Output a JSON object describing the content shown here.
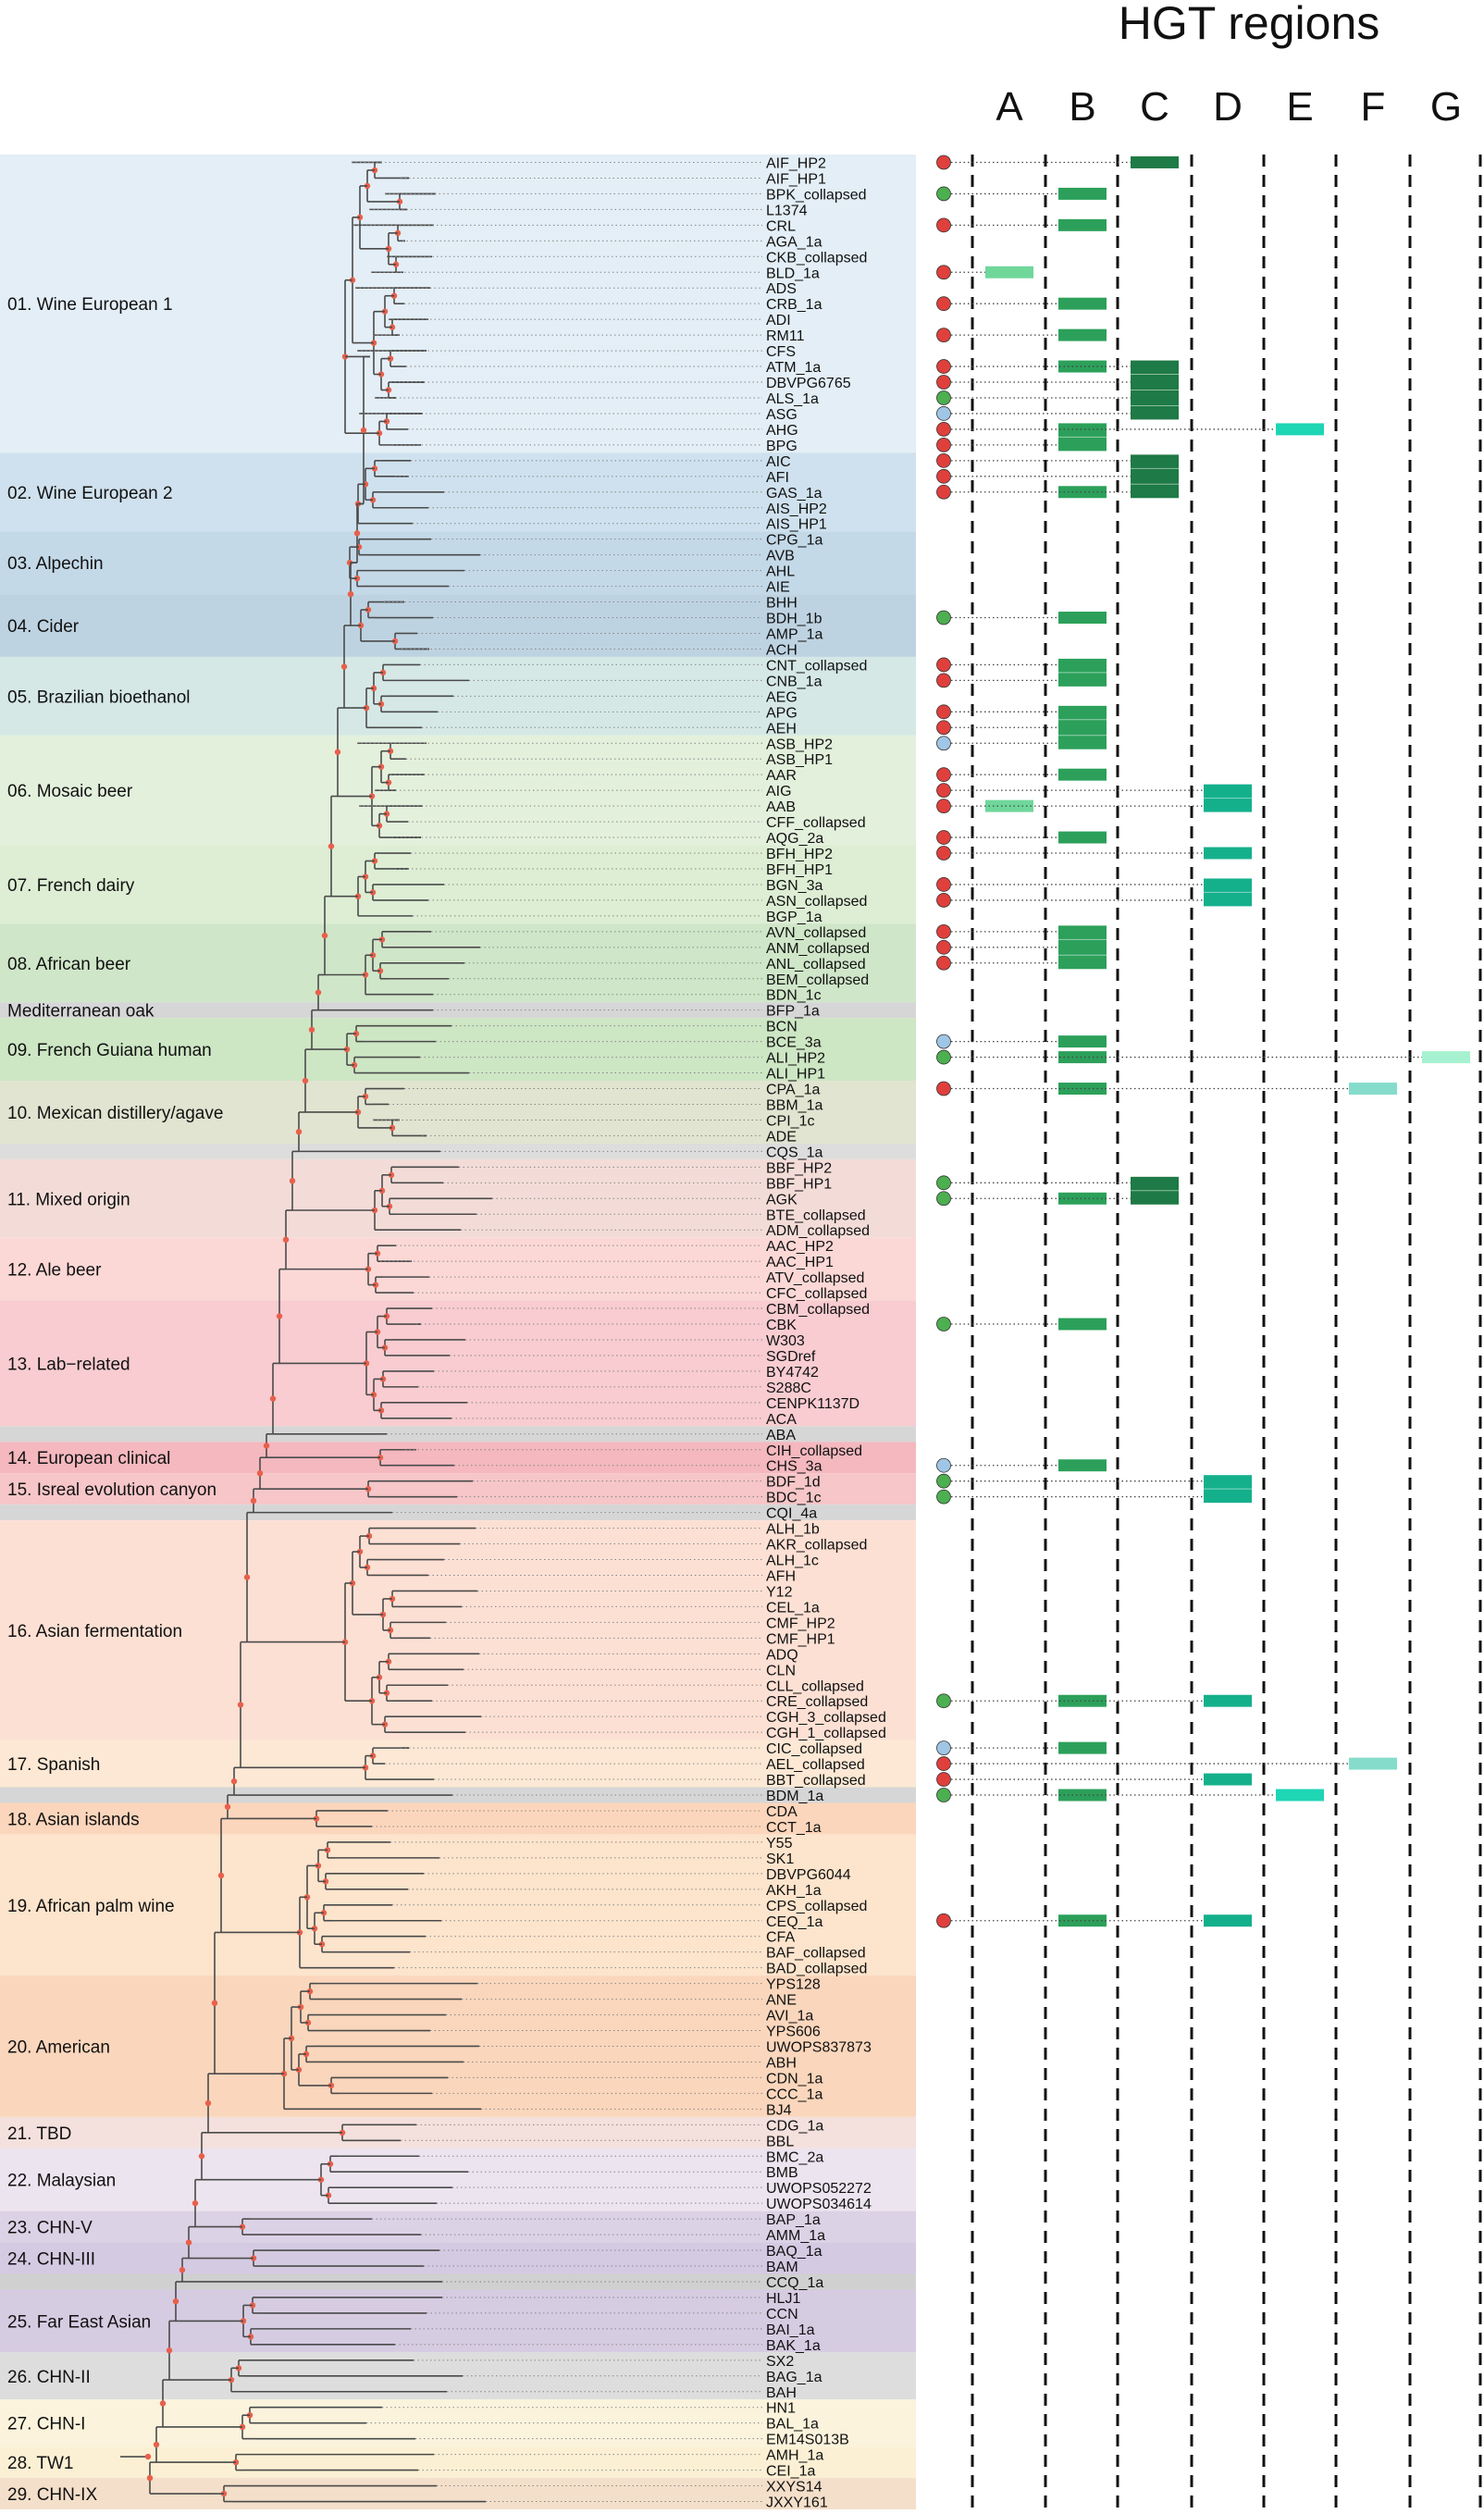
{
  "title": "HGT regions",
  "columns": [
    "A",
    "B",
    "C",
    "D",
    "E",
    "F",
    "G"
  ],
  "colors": {
    "A": "#6fd79a",
    "B": "#2ca05a",
    "C": "#1e7a46",
    "D": "#14b08c",
    "E": "#1ed6b4",
    "F": "#86dccb",
    "G": "#a6f2d0",
    "tree": "#4a4a4a",
    "node": "#e8604c",
    "dot_red": "#e0403c",
    "dot_green": "#4caf50",
    "dot_blue": "#9fc6e6"
  },
  "clades": [
    {
      "label": "01. Wine European 1",
      "start": 0,
      "end": 19,
      "color": "#e3eef6"
    },
    {
      "label": "02. Wine European 2",
      "start": 19,
      "end": 24,
      "color": "#cfe1ee"
    },
    {
      "label": "03. Alpechin",
      "start": 24,
      "end": 28,
      "color": "#c4d9e8"
    },
    {
      "label": "04. Cider",
      "start": 28,
      "end": 32,
      "color": "#bed3e2"
    },
    {
      "label": "05. Brazilian bioethanol",
      "start": 32,
      "end": 37,
      "color": "#d5e8e6"
    },
    {
      "label": "06. Mosaic beer",
      "start": 37,
      "end": 44,
      "color": "#e3f0dc"
    },
    {
      "label": "07. French dairy",
      "start": 44,
      "end": 49,
      "color": "#ddeed4"
    },
    {
      "label": "08. African beer",
      "start": 49,
      "end": 54,
      "color": "#cfe6c8"
    },
    {
      "label": "Mediterranean oak",
      "start": 54,
      "end": 55,
      "color": "#d6d6d6"
    },
    {
      "label": "09. French Guiana human",
      "start": 55,
      "end": 59,
      "color": "#cde6c4"
    },
    {
      "label": "10. Mexican distillery/agave",
      "start": 59,
      "end": 63,
      "color": "#e0e4d0"
    },
    {
      "label": "",
      "start": 63,
      "end": 64,
      "color": "#dddddd"
    },
    {
      "label": "11. Mixed origin",
      "start": 64,
      "end": 69,
      "color": "#f3dcd8"
    },
    {
      "label": "12. Ale beer",
      "start": 69,
      "end": 73,
      "color": "#fbd8d6"
    },
    {
      "label": "13. Lab−related",
      "start": 73,
      "end": 81,
      "color": "#f8ccd0"
    },
    {
      "label": "",
      "start": 81,
      "end": 82,
      "color": "#d6d6d6"
    },
    {
      "label": "14. European clinical",
      "start": 82,
      "end": 84,
      "color": "#f4b8be"
    },
    {
      "label": "15. Isreal evolution canyon",
      "start": 84,
      "end": 86,
      "color": "#f6c6c8"
    },
    {
      "label": "",
      "start": 86,
      "end": 87,
      "color": "#d6d6d6"
    },
    {
      "label": "16. Asian fermentation",
      "start": 87,
      "end": 101,
      "color": "#fde0d4"
    },
    {
      "label": "17. Spanish",
      "start": 101,
      "end": 104,
      "color": "#fce8d4"
    },
    {
      "label": "",
      "start": 104,
      "end": 105,
      "color": "#d6d6d6"
    },
    {
      "label": "18. Asian islands",
      "start": 105,
      "end": 107,
      "color": "#fcd6bc"
    },
    {
      "label": "19. African palm wine",
      "start": 107,
      "end": 116,
      "color": "#fde4cc"
    },
    {
      "label": "20. American",
      "start": 116,
      "end": 125,
      "color": "#fad6bc"
    },
    {
      "label": "21. TBD",
      "start": 125,
      "end": 127,
      "color": "#f4e0dc"
    },
    {
      "label": "22. Malaysian",
      "start": 127,
      "end": 131,
      "color": "#ece4ee"
    },
    {
      "label": "23. CHN-V",
      "start": 131,
      "end": 133,
      "color": "#dcd2e6"
    },
    {
      "label": "24. CHN-III",
      "start": 133,
      "end": 135,
      "color": "#d4cae2"
    },
    {
      "label": "",
      "start": 135,
      "end": 136,
      "color": "#d0d0d0"
    },
    {
      "label": "25. Far East Asian",
      "start": 136,
      "end": 140,
      "color": "#d6cce2"
    },
    {
      "label": "26. CHN-II",
      "start": 140,
      "end": 143,
      "color": "#dddddd"
    },
    {
      "label": "27. CHN-I",
      "start": 143,
      "end": 146,
      "color": "#fbf3dc"
    },
    {
      "label": "28. TW1",
      "start": 146,
      "end": 148,
      "color": "#fbf0d4"
    },
    {
      "label": "29. CHN-IX",
      "start": 148,
      "end": 150,
      "color": "#f4dfca"
    }
  ],
  "strains": [
    "AIF_HP2",
    "AIF_HP1",
    "BPK_collapsed",
    "L1374",
    "CRL",
    "AGA_1a",
    "CKB_collapsed",
    "BLD_1a",
    "ADS",
    "CRB_1a",
    "ADI",
    "RM11",
    "CFS",
    "ATM_1a",
    "DBVPG6765",
    "ALS_1a",
    "ASG",
    "AHG",
    "BPG",
    "AIC",
    "AFI",
    "GAS_1a",
    "AIS_HP2",
    "AIS_HP1",
    "CPG_1a",
    "AVB",
    "AHL",
    "AIE",
    "BHH",
    "BDH_1b",
    "AMP_1a",
    "ACH",
    "CNT_collapsed",
    "CNB_1a",
    "AEG",
    "APG",
    "AEH",
    "ASB_HP2",
    "ASB_HP1",
    "AAR",
    "AIG",
    "AAB",
    "CFF_collapsed",
    "AQG_2a",
    "BFH_HP2",
    "BFH_HP1",
    "BGN_3a",
    "ASN_collapsed",
    "BGP_1a",
    "AVN_collapsed",
    "ANM_collapsed",
    "ANL_collapsed",
    "BEM_collapsed",
    "BDN_1c",
    "BFP_1a",
    "BCN",
    "BCE_3a",
    "ALI_HP2",
    "ALI_HP1",
    "CPA_1a",
    "BBM_1a",
    "CPI_1c",
    "ADE",
    "CQS_1a",
    "BBF_HP2",
    "BBF_HP1",
    "AGK",
    "BTE_collapsed",
    "ADM_collapsed",
    "AAC_HP2",
    "AAC_HP1",
    "ATV_collapsed",
    "CFC_collapsed",
    "CBM_collapsed",
    "CBK",
    "W303",
    "SGDref",
    "BY4742",
    "S288C",
    "CENPK1137D",
    "ACA",
    "ABA",
    "CIH_collapsed",
    "CHS_3a",
    "BDF_1d",
    "BDC_1c",
    "CQI_4a",
    "ALH_1b",
    "AKR_collapsed",
    "ALH_1c",
    "AFH",
    "Y12",
    "CEL_1a",
    "CMF_HP2",
    "CMF_HP1",
    "ADQ",
    "CLN",
    "CLL_collapsed",
    "CRE_collapsed",
    "CGH_3_collapsed",
    "CGH_1_collapsed",
    "CIC_collapsed",
    "AEL_collapsed",
    "BBT_collapsed",
    "BDM_1a",
    "CDA",
    "CCT_1a",
    "Y55",
    "SK1",
    "DBVPG6044",
    "AKH_1a",
    "CPS_collapsed",
    "CEQ_1a",
    "CFA",
    "BAF_collapsed",
    "BAD_collapsed",
    "YPS128",
    "ANE",
    "AVI_1a",
    "YPS606",
    "UWOPS837873",
    "ABH",
    "CDN_1a",
    "CCC_1a",
    "BJ4",
    "CDG_1a",
    "BBL",
    "BMC_2a",
    "BMB",
    "UWOPS052272",
    "UWOPS034614",
    "BAP_1a",
    "AMM_1a",
    "BAQ_1a",
    "BAM",
    "CCQ_1a",
    "HLJ1",
    "CCN",
    "BAI_1a",
    "BAK_1a",
    "SX2",
    "BAG_1a",
    "BAH",
    "HN1",
    "BAL_1a",
    "EM14S013B",
    "AMH_1a",
    "CEI_1a",
    "XXYS14",
    "JXXY161"
  ],
  "dots": [
    {
      "i": 0,
      "c": "red"
    },
    {
      "i": 2,
      "c": "green"
    },
    {
      "i": 4,
      "c": "red"
    },
    {
      "i": 7,
      "c": "red"
    },
    {
      "i": 9,
      "c": "red"
    },
    {
      "i": 11,
      "c": "red"
    },
    {
      "i": 13,
      "c": "red"
    },
    {
      "i": 14,
      "c": "red"
    },
    {
      "i": 15,
      "c": "green"
    },
    {
      "i": 16,
      "c": "blue"
    },
    {
      "i": 17,
      "c": "red"
    },
    {
      "i": 18,
      "c": "red"
    },
    {
      "i": 19,
      "c": "red"
    },
    {
      "i": 20,
      "c": "red"
    },
    {
      "i": 21,
      "c": "red"
    },
    {
      "i": 29,
      "c": "green"
    },
    {
      "i": 32,
      "c": "red"
    },
    {
      "i": 33,
      "c": "red"
    },
    {
      "i": 35,
      "c": "red"
    },
    {
      "i": 36,
      "c": "red"
    },
    {
      "i": 37,
      "c": "blue"
    },
    {
      "i": 39,
      "c": "red"
    },
    {
      "i": 40,
      "c": "red"
    },
    {
      "i": 41,
      "c": "red"
    },
    {
      "i": 43,
      "c": "red"
    },
    {
      "i": 44,
      "c": "red"
    },
    {
      "i": 46,
      "c": "red"
    },
    {
      "i": 47,
      "c": "red"
    },
    {
      "i": 49,
      "c": "red"
    },
    {
      "i": 50,
      "c": "red"
    },
    {
      "i": 51,
      "c": "red"
    },
    {
      "i": 56,
      "c": "blue"
    },
    {
      "i": 57,
      "c": "green"
    },
    {
      "i": 59,
      "c": "red"
    },
    {
      "i": 65,
      "c": "green"
    },
    {
      "i": 66,
      "c": "green"
    },
    {
      "i": 74,
      "c": "green"
    },
    {
      "i": 83,
      "c": "blue"
    },
    {
      "i": 84,
      "c": "green"
    },
    {
      "i": 85,
      "c": "green"
    },
    {
      "i": 98,
      "c": "green"
    },
    {
      "i": 101,
      "c": "blue"
    },
    {
      "i": 102,
      "c": "red"
    },
    {
      "i": 103,
      "c": "red"
    },
    {
      "i": 104,
      "c": "green"
    },
    {
      "i": 112,
      "c": "red"
    }
  ],
  "hgt": [
    {
      "col": "C",
      "start": 0,
      "end": 0
    },
    {
      "col": "B",
      "start": 2,
      "end": 2
    },
    {
      "col": "B",
      "start": 4,
      "end": 4
    },
    {
      "col": "A",
      "start": 7,
      "end": 7
    },
    {
      "col": "B",
      "start": 9,
      "end": 9
    },
    {
      "col": "B",
      "start": 11,
      "end": 11
    },
    {
      "col": "B",
      "start": 13,
      "end": 13
    },
    {
      "col": "C",
      "start": 13,
      "end": 16
    },
    {
      "col": "B",
      "start": 17,
      "end": 18
    },
    {
      "col": "E",
      "start": 17,
      "end": 17
    },
    {
      "col": "C",
      "start": 19,
      "end": 21
    },
    {
      "col": "B",
      "start": 21,
      "end": 21
    },
    {
      "col": "B",
      "start": 29,
      "end": 29
    },
    {
      "col": "B",
      "start": 32,
      "end": 33
    },
    {
      "col": "B",
      "start": 35,
      "end": 37
    },
    {
      "col": "B",
      "start": 39,
      "end": 39
    },
    {
      "col": "D",
      "start": 40,
      "end": 41
    },
    {
      "col": "A",
      "start": 41,
      "end": 41
    },
    {
      "col": "B",
      "start": 43,
      "end": 43
    },
    {
      "col": "D",
      "start": 44,
      "end": 44
    },
    {
      "col": "D",
      "start": 46,
      "end": 47
    },
    {
      "col": "B",
      "start": 49,
      "end": 51
    },
    {
      "col": "B",
      "start": 56,
      "end": 56
    },
    {
      "col": "B",
      "start": 57,
      "end": 57
    },
    {
      "col": "G",
      "start": 57,
      "end": 57
    },
    {
      "col": "B",
      "start": 59,
      "end": 59
    },
    {
      "col": "F",
      "start": 59,
      "end": 59
    },
    {
      "col": "C",
      "start": 65,
      "end": 66
    },
    {
      "col": "B",
      "start": 66,
      "end": 66
    },
    {
      "col": "B",
      "start": 74,
      "end": 74
    },
    {
      "col": "B",
      "start": 83,
      "end": 83
    },
    {
      "col": "D",
      "start": 84,
      "end": 85
    },
    {
      "col": "B",
      "start": 98,
      "end": 98
    },
    {
      "col": "D",
      "start": 98,
      "end": 98
    },
    {
      "col": "B",
      "start": 101,
      "end": 101
    },
    {
      "col": "F",
      "start": 102,
      "end": 102
    },
    {
      "col": "D",
      "start": 103,
      "end": 103
    },
    {
      "col": "B",
      "start": 104,
      "end": 104
    },
    {
      "col": "E",
      "start": 104,
      "end": 104
    },
    {
      "col": "B",
      "start": 112,
      "end": 112
    },
    {
      "col": "D",
      "start": 112,
      "end": 112
    }
  ]
}
